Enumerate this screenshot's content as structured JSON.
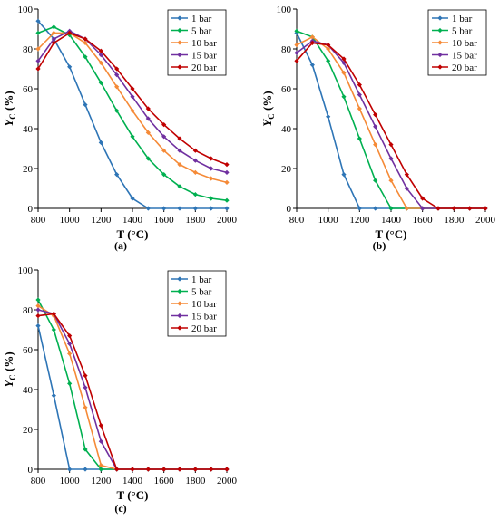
{
  "chart_data": [
    {
      "type": "line",
      "panel_label": "(a)",
      "xlabel": "T (°C)",
      "ylabel": "Y",
      "ylabel_sub": "C",
      "ylabel_unit": " (%)",
      "xlim": [
        800,
        2000
      ],
      "ylim": [
        0,
        100
      ],
      "x_ticks": [
        800,
        1000,
        1200,
        1400,
        1600,
        1800,
        2000
      ],
      "y_ticks": [
        0,
        20,
        40,
        60,
        80,
        100
      ],
      "grid": false,
      "legend_position": "top-right",
      "x": [
        800,
        900,
        1000,
        1100,
        1200,
        1300,
        1400,
        1500,
        1600,
        1700,
        1800,
        1900,
        2000
      ],
      "series": [
        {
          "name": "1 bar",
          "color": "#2e75b6",
          "values": [
            94,
            85,
            71,
            52,
            33,
            17,
            5,
            0,
            0,
            0,
            0,
            0,
            0
          ]
        },
        {
          "name": "5 bar",
          "color": "#00b050",
          "values": [
            88,
            91,
            87,
            76,
            63,
            49,
            36,
            25,
            17,
            11,
            7,
            5,
            4
          ]
        },
        {
          "name": "10 bar",
          "color": "#f58a37",
          "values": [
            80,
            88,
            88,
            83,
            73,
            61,
            49,
            38,
            29,
            22,
            18,
            15,
            13
          ]
        },
        {
          "name": "15 bar",
          "color": "#7030a0",
          "values": [
            74,
            85,
            89,
            85,
            77,
            67,
            56,
            45,
            36,
            29,
            24,
            20,
            18
          ]
        },
        {
          "name": "20 bar",
          "color": "#c00000",
          "values": [
            70,
            83,
            88,
            85,
            79,
            70,
            60,
            50,
            42,
            35,
            29,
            25,
            22
          ]
        }
      ]
    },
    {
      "type": "line",
      "panel_label": "(b)",
      "xlabel": "T (°C)",
      "ylabel": "Y",
      "ylabel_sub": "C",
      "ylabel_unit": " (%)",
      "xlim": [
        800,
        2000
      ],
      "ylim": [
        0,
        100
      ],
      "x_ticks": [
        800,
        1000,
        1200,
        1400,
        1600,
        1800,
        2000
      ],
      "y_ticks": [
        0,
        20,
        40,
        60,
        80,
        100
      ],
      "grid": false,
      "legend_position": "top-right",
      "x": [
        800,
        900,
        1000,
        1100,
        1200,
        1300,
        1400,
        1500,
        1600,
        1700,
        1800,
        1900,
        2000
      ],
      "series": [
        {
          "name": "1 bar",
          "color": "#2e75b6",
          "values": [
            88,
            72,
            46,
            17,
            0,
            0,
            0,
            0,
            0,
            0,
            0,
            0,
            0
          ]
        },
        {
          "name": "5 bar",
          "color": "#00b050",
          "values": [
            89,
            86,
            74,
            56,
            35,
            14,
            0,
            0,
            0,
            0,
            0,
            0,
            0
          ]
        },
        {
          "name": "10 bar",
          "color": "#f58a37",
          "values": [
            82,
            86,
            80,
            68,
            50,
            32,
            14,
            0,
            0,
            0,
            0,
            0,
            0
          ]
        },
        {
          "name": "15 bar",
          "color": "#7030a0",
          "values": [
            78,
            84,
            82,
            73,
            57,
            41,
            25,
            10,
            0,
            0,
            0,
            0,
            0
          ]
        },
        {
          "name": "20 bar",
          "color": "#c00000",
          "values": [
            74,
            83,
            82,
            75,
            62,
            47,
            32,
            17,
            5,
            0,
            0,
            0,
            0
          ]
        }
      ]
    },
    {
      "type": "line",
      "panel_label": "(c)",
      "xlabel": "T (°C)",
      "ylabel": "Y",
      "ylabel_sub": "C",
      "ylabel_unit": " (%)",
      "xlim": [
        800,
        2000
      ],
      "ylim": [
        0,
        100
      ],
      "x_ticks": [
        800,
        1000,
        1200,
        1400,
        1600,
        1800,
        2000
      ],
      "y_ticks": [
        0,
        20,
        40,
        60,
        80,
        100
      ],
      "grid": false,
      "legend_position": "top-right",
      "x": [
        800,
        900,
        1000,
        1100,
        1200,
        1300,
        1400,
        1500,
        1600,
        1700,
        1800,
        1900,
        2000
      ],
      "series": [
        {
          "name": "1 bar",
          "color": "#2e75b6",
          "values": [
            72,
            37,
            0,
            0,
            0,
            0,
            0,
            0,
            0,
            0,
            0,
            0,
            0
          ]
        },
        {
          "name": "5 bar",
          "color": "#00b050",
          "values": [
            85,
            70,
            43,
            10,
            0,
            0,
            0,
            0,
            0,
            0,
            0,
            0,
            0
          ]
        },
        {
          "name": "10 bar",
          "color": "#f58a37",
          "values": [
            82,
            77,
            58,
            31,
            2,
            0,
            0,
            0,
            0,
            0,
            0,
            0,
            0
          ]
        },
        {
          "name": "15 bar",
          "color": "#7030a0",
          "values": [
            80,
            78,
            63,
            41,
            14,
            0,
            0,
            0,
            0,
            0,
            0,
            0,
            0
          ]
        },
        {
          "name": "20 bar",
          "color": "#c00000",
          "values": [
            77,
            78,
            67,
            47,
            22,
            0,
            0,
            0,
            0,
            0,
            0,
            0,
            0
          ]
        }
      ]
    }
  ]
}
